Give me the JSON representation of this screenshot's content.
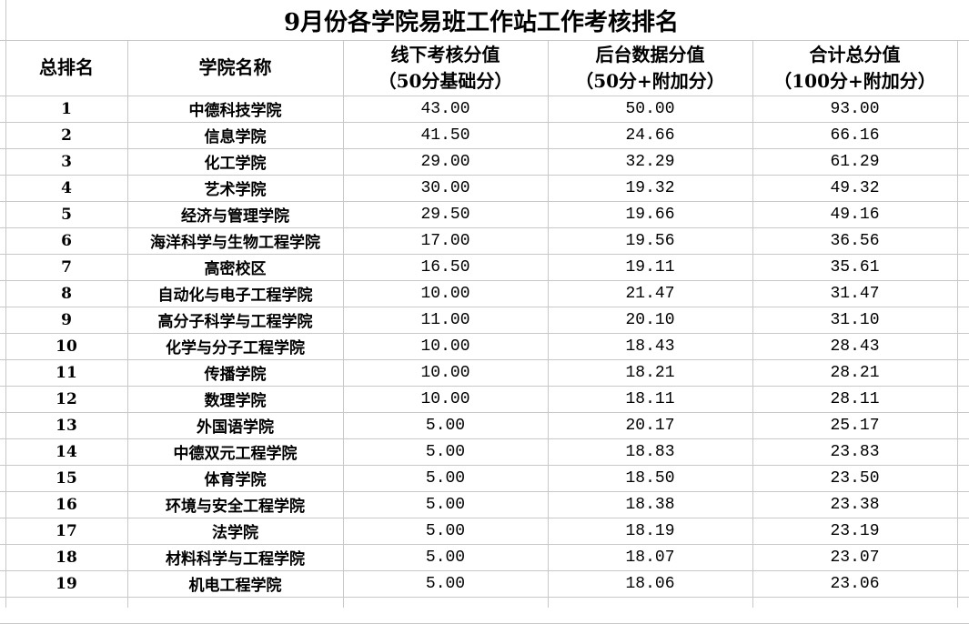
{
  "title": "9月份各学院易班工作站工作考核排名",
  "headers": [
    {
      "line1": "总排名",
      "line2": ""
    },
    {
      "line1": "学院名称",
      "line2": ""
    },
    {
      "line1": "线下考核分值",
      "line2": "（50分基础分）"
    },
    {
      "line1": "后台数据分值",
      "line2": "（50分+附加分）"
    },
    {
      "line1": "合计总分值",
      "line2": "（100分+附加分）"
    }
  ],
  "rows": [
    {
      "rank": "1",
      "college": "中德科技学院",
      "offline": "43.00",
      "backend": "50.00",
      "total": "93.00"
    },
    {
      "rank": "2",
      "college": "信息学院",
      "offline": "41.50",
      "backend": "24.66",
      "total": "66.16"
    },
    {
      "rank": "3",
      "college": "化工学院",
      "offline": "29.00",
      "backend": "32.29",
      "total": "61.29"
    },
    {
      "rank": "4",
      "college": "艺术学院",
      "offline": "30.00",
      "backend": "19.32",
      "total": "49.32"
    },
    {
      "rank": "5",
      "college": "经济与管理学院",
      "offline": "29.50",
      "backend": "19.66",
      "total": "49.16"
    },
    {
      "rank": "6",
      "college": "海洋科学与生物工程学院",
      "offline": "17.00",
      "backend": "19.56",
      "total": "36.56"
    },
    {
      "rank": "7",
      "college": "高密校区",
      "offline": "16.50",
      "backend": "19.11",
      "total": "35.61"
    },
    {
      "rank": "8",
      "college": "自动化与电子工程学院",
      "offline": "10.00",
      "backend": "21.47",
      "total": "31.47"
    },
    {
      "rank": "9",
      "college": "高分子科学与工程学院",
      "offline": "11.00",
      "backend": "20.10",
      "total": "31.10"
    },
    {
      "rank": "10",
      "college": "化学与分子工程学院",
      "offline": "10.00",
      "backend": "18.43",
      "total": "28.43"
    },
    {
      "rank": "11",
      "college": "传播学院",
      "offline": "10.00",
      "backend": "18.21",
      "total": "28.21"
    },
    {
      "rank": "12",
      "college": "数理学院",
      "offline": "10.00",
      "backend": "18.11",
      "total": "28.11"
    },
    {
      "rank": "13",
      "college": "外国语学院",
      "offline": "5.00",
      "backend": "20.17",
      "total": "25.17"
    },
    {
      "rank": "14",
      "college": "中德双元工程学院",
      "offline": "5.00",
      "backend": "18.83",
      "total": "23.83"
    },
    {
      "rank": "15",
      "college": "体育学院",
      "offline": "5.00",
      "backend": "18.50",
      "total": "23.50"
    },
    {
      "rank": "16",
      "college": "环境与安全工程学院",
      "offline": "5.00",
      "backend": "18.38",
      "total": "23.38"
    },
    {
      "rank": "17",
      "college": "法学院",
      "offline": "5.00",
      "backend": "18.19",
      "total": "23.19"
    },
    {
      "rank": "18",
      "college": "材料科学与工程学院",
      "offline": "5.00",
      "backend": "18.07",
      "total": "23.07"
    },
    {
      "rank": "19",
      "college": "机电工程学院",
      "offline": "5.00",
      "backend": "18.06",
      "total": "23.06"
    }
  ]
}
